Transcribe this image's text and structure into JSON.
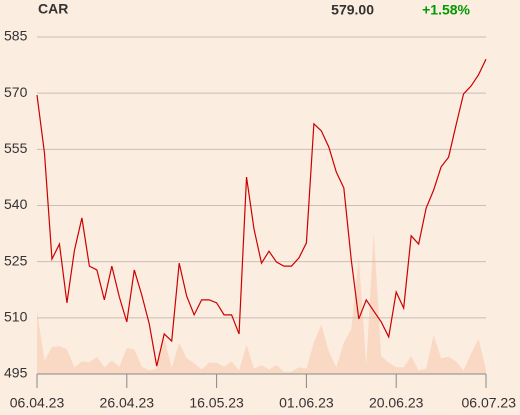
{
  "chart_data": {
    "type": "line",
    "title": "CAR",
    "price": "579.00",
    "change": "+1.58%",
    "change_color": "#009900",
    "color": "#cc0000",
    "volume_color": "#f9d9c4",
    "values": [
      569.5,
      554,
      525.7,
      529.7,
      514,
      528,
      536.7,
      523.8,
      522.8,
      514.8,
      523.8,
      515.6,
      508.9,
      522.8,
      516.1,
      508.4,
      497.1,
      505.7,
      503.8,
      524.6,
      515.8,
      510.8,
      514.8,
      514.8,
      514,
      510.8,
      510.8,
      505.7,
      547.6,
      533.7,
      524.6,
      527.8,
      524.9,
      523.8,
      523.8,
      526,
      530,
      561.8,
      559.9,
      555.6,
      548.9,
      544.7,
      525.4,
      509.7,
      514.8,
      511.8,
      508.9,
      504.9,
      516.9,
      512.6,
      531.9,
      529.7,
      539.3,
      544.1,
      550.3,
      552.9,
      561.5,
      569.8,
      571.9,
      574.9,
      579.1
    ],
    "volume": [
      140,
      30,
      60,
      62,
      55,
      15,
      28,
      26,
      38,
      15,
      30,
      16,
      58,
      55,
      16,
      8,
      12,
      80,
      14,
      70,
      35,
      24,
      10,
      25,
      25,
      16,
      28,
      8,
      65,
      12,
      20,
      10,
      20,
      5,
      5,
      15,
      12,
      70,
      110,
      50,
      15,
      70,
      100,
      260,
      20,
      315,
      40,
      25,
      15,
      15,
      40,
      8,
      12,
      86,
      35,
      38,
      28,
      8,
      45,
      78,
      10
    ],
    "ylim": [
      495,
      585
    ],
    "yticks": [
      495,
      510,
      525,
      540,
      555,
      570,
      585
    ],
    "xlim": [
      0,
      60
    ],
    "xticks": [
      {
        "value": 0,
        "label": "06.04.23"
      },
      {
        "value": 12,
        "label": "26.04.23"
      },
      {
        "value": 24,
        "label": "16.05.23"
      },
      {
        "value": 36,
        "label": "01.06.23"
      },
      {
        "value": 48,
        "label": "20.06.23"
      },
      {
        "value": 60,
        "label": "06.07.23"
      }
    ],
    "grid": true
  }
}
